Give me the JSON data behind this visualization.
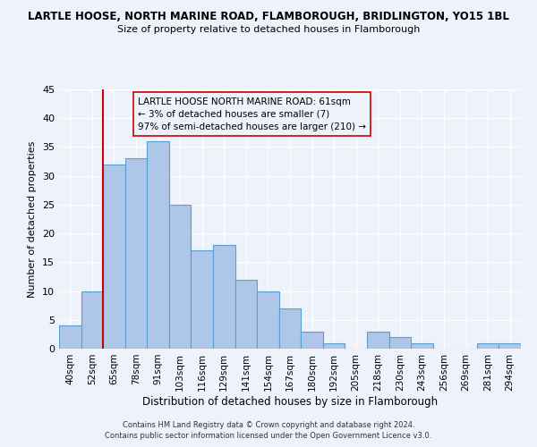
{
  "title": "LARTLE HOOSE, NORTH MARINE ROAD, FLAMBOROUGH, BRIDLINGTON, YO15 1BL",
  "subtitle": "Size of property relative to detached houses in Flamborough",
  "xlabel": "Distribution of detached houses by size in Flamborough",
  "ylabel": "Number of detached properties",
  "bin_labels": [
    "40sqm",
    "52sqm",
    "65sqm",
    "78sqm",
    "91sqm",
    "103sqm",
    "116sqm",
    "129sqm",
    "141sqm",
    "154sqm",
    "167sqm",
    "180sqm",
    "192sqm",
    "205sqm",
    "218sqm",
    "230sqm",
    "243sqm",
    "256sqm",
    "269sqm",
    "281sqm",
    "294sqm"
  ],
  "bar_values": [
    4,
    10,
    32,
    33,
    36,
    25,
    17,
    18,
    12,
    10,
    7,
    3,
    1,
    0,
    3,
    2,
    1,
    0,
    0,
    1,
    1
  ],
  "bar_color": "#aec6e8",
  "bar_edge_color": "#5a9fd4",
  "ylim": [
    0,
    45
  ],
  "yticks": [
    0,
    5,
    10,
    15,
    20,
    25,
    30,
    35,
    40,
    45
  ],
  "annotation_title": "LARTLE HOOSE NORTH MARINE ROAD: 61sqm",
  "annotation_line1": "← 3% of detached houses are smaller (7)",
  "annotation_line2": "97% of semi-detached houses are larger (210) →",
  "footer1": "Contains HM Land Registry data © Crown copyright and database right 2024.",
  "footer2": "Contains public sector information licensed under the Open Government Licence v3.0.",
  "red_line_color": "#cc0000",
  "background_color": "#eef2fb"
}
